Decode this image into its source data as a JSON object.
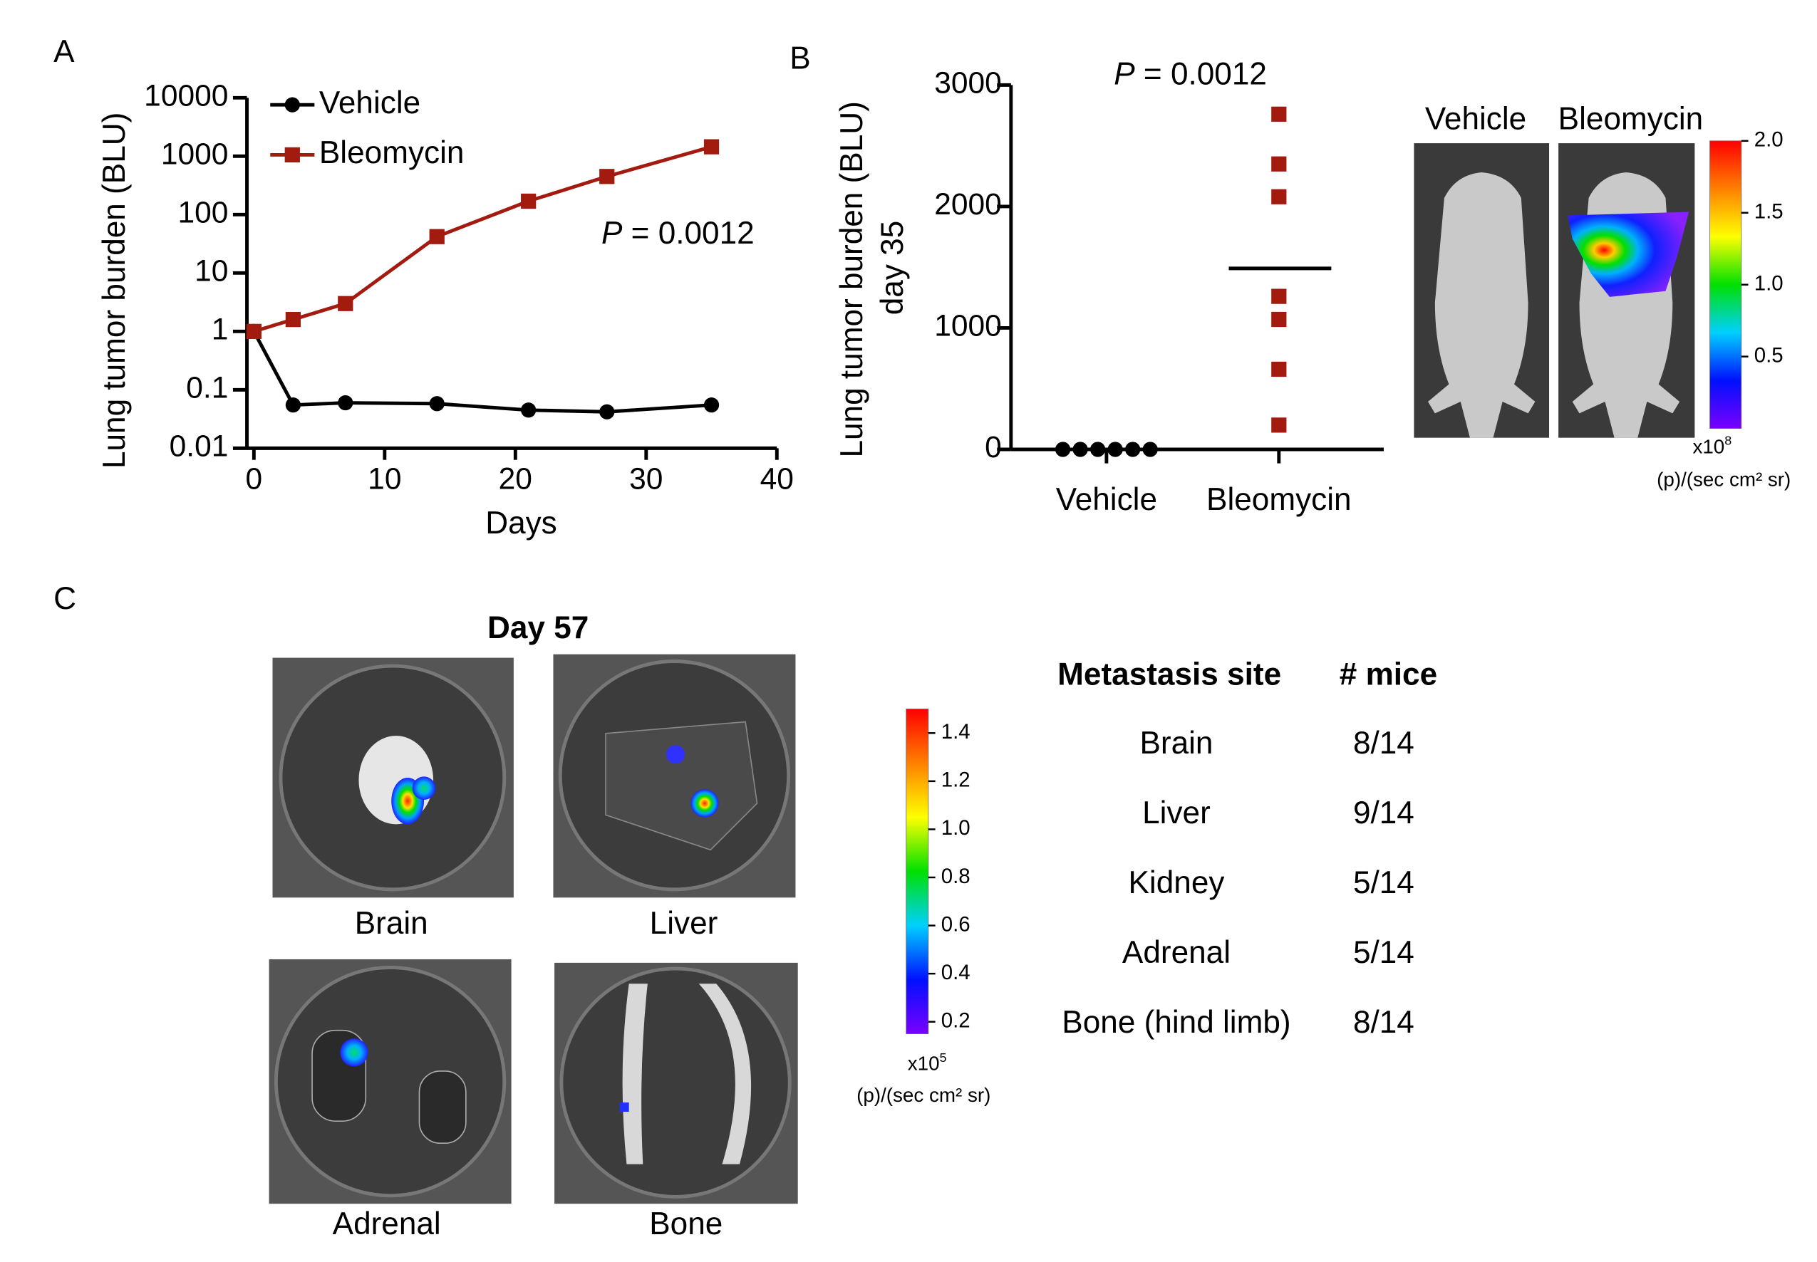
{
  "panels": [
    "A",
    "B",
    "C"
  ],
  "chart_data": [
    {
      "type": "line",
      "xlabel": "Days",
      "ylabel": "Lung tumor burden (BLU)",
      "xlim": [
        0,
        40
      ],
      "xticks": [
        0,
        10,
        20,
        30,
        40
      ],
      "ylim": [
        0.01,
        10000
      ],
      "yticks": [
        0.01,
        0.1,
        1,
        10,
        100,
        1000,
        10000
      ],
      "yscale": "log",
      "legend": "upper left",
      "annotation": {
        "italic": "P",
        "rest": "= 0.0012"
      },
      "series": [
        {
          "name": "Vehicle",
          "color": "#000000",
          "marker": "circle",
          "x": [
            0,
            3,
            7,
            14,
            21,
            27,
            35
          ],
          "values": [
            1,
            0.055,
            0.06,
            0.058,
            0.045,
            0.042,
            0.055
          ]
        },
        {
          "name": "Bleomycin",
          "color": "#a31b0f",
          "marker": "square",
          "x": [
            0,
            3,
            7,
            14,
            21,
            27,
            35
          ],
          "values": [
            1,
            1.6,
            3,
            42,
            170,
            450,
            1450
          ]
        }
      ]
    },
    {
      "type": "strip",
      "ylabel": [
        "Lung tumor burden (BLU)",
        "day 35"
      ],
      "categories": [
        "Vehicle",
        "Bleomycin"
      ],
      "ylim": [
        0,
        3000
      ],
      "yticks": [
        0,
        1000,
        2000,
        3000
      ],
      "annotation": {
        "italic": "P",
        "rest": "= 0.0012"
      },
      "series": [
        {
          "color": "#000000",
          "marker": "circle",
          "values": [
            0,
            0,
            0,
            0,
            0,
            0
          ]
        },
        {
          "color": "#a31b0f",
          "marker": "square",
          "values": [
            2760,
            2350,
            2080,
            1260,
            1070,
            660,
            200
          ],
          "mean": 1490
        }
      ]
    },
    {
      "type": "colorbar",
      "ylim": [
        0,
        2
      ],
      "yticks": [
        0.5,
        {
          "value": 1,
          "label": "1.0"
        },
        1.5,
        {
          "value": 2,
          "label": "2.0"
        }
      ],
      "colors": [
        "#7a00ff",
        "#0010ff",
        "#00d0ff",
        "#00e000",
        "#ffff00",
        "#ff8000",
        "#ff0000"
      ],
      "scale_label": {
        "base": "x10",
        "exponent": "8"
      },
      "unit": "(p)/(sec cm² sr)"
    },
    {
      "type": "colorbar",
      "ylim": [
        0.15,
        1.5
      ],
      "yticks": [
        0.2,
        0.4,
        0.6,
        0.8,
        {
          "value": 1,
          "label": "1.0"
        },
        1.2,
        1.4
      ],
      "colors": [
        "#7a00ff",
        "#0010ff",
        "#00d0ff",
        "#00e000",
        "#ffff00",
        "#ff8000",
        "#ff0000"
      ],
      "scale_label": {
        "base": "x10",
        "exponent": "5"
      },
      "unit": "(p)/(sec cm² sr)"
    }
  ],
  "panel_b_images": [
    "Vehicle",
    "Bleomycin"
  ],
  "panel_c": {
    "title": "Day 57",
    "images": [
      "Brain",
      "Liver",
      "Adrenal",
      "Bone"
    ]
  },
  "table": {
    "header": [
      "Metastasis site",
      "# mice"
    ],
    "rows": [
      [
        "Brain",
        "8/14"
      ],
      [
        "Liver",
        "9/14"
      ],
      [
        "Kidney",
        "5/14"
      ],
      [
        "Adrenal",
        "5/14"
      ],
      [
        "Bone (hind limb)",
        "8/14"
      ]
    ]
  }
}
